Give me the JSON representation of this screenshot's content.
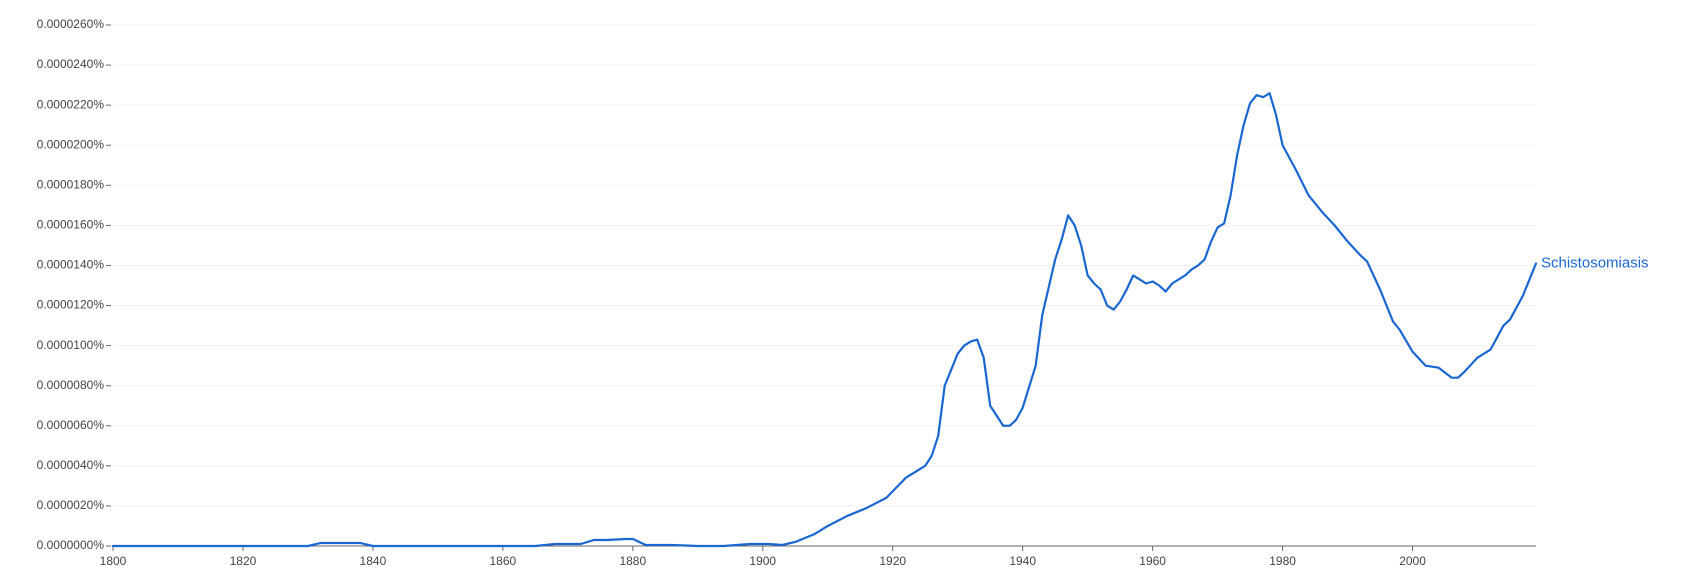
{
  "chart_data": {
    "type": "line",
    "xlim": [
      1800,
      2019
    ],
    "xticks": [
      1800,
      1820,
      1840,
      1860,
      1880,
      1900,
      1920,
      1940,
      1960,
      1980,
      2000
    ],
    "ylim": [
      0,
      2.6e-05
    ],
    "yticks": [
      {
        "value": 0,
        "label": "0.0000000%"
      },
      {
        "value": 2e-06,
        "label": "0.0000020%"
      },
      {
        "value": 4e-06,
        "label": "0.0000040%"
      },
      {
        "value": 6e-06,
        "label": "0.0000060%"
      },
      {
        "value": 8e-06,
        "label": "0.0000080%"
      },
      {
        "value": 1e-05,
        "label": "0.0000100%"
      },
      {
        "value": 1.2e-05,
        "label": "0.0000120%"
      },
      {
        "value": 1.4e-05,
        "label": "0.0000140%"
      },
      {
        "value": 1.6e-05,
        "label": "0.0000160%"
      },
      {
        "value": 1.8e-05,
        "label": "0.0000180%"
      },
      {
        "value": 2e-05,
        "label": "0.0000200%"
      },
      {
        "value": 2.2e-05,
        "label": "0.0000220%"
      },
      {
        "value": 2.4e-05,
        "label": "0.0000240%"
      },
      {
        "value": 2.6e-05,
        "label": "0.0000260%"
      }
    ],
    "grid": true,
    "x": [
      1800,
      1830,
      1832,
      1834,
      1838,
      1840,
      1865,
      1868,
      1872,
      1874,
      1876,
      1879,
      1880,
      1882,
      1886,
      1890,
      1894,
      1898,
      1901,
      1903,
      1905,
      1908,
      1910,
      1913,
      1916,
      1919,
      1922,
      1925,
      1926,
      1927,
      1928,
      1929,
      1930,
      1931,
      1932,
      1933,
      1934,
      1935,
      1936,
      1937,
      1938,
      1939,
      1940,
      1942,
      1943,
      1945,
      1946,
      1947,
      1948,
      1949,
      1950,
      1951,
      1952,
      1953,
      1954,
      1955,
      1956,
      1957,
      1958,
      1959,
      1960,
      1961,
      1962,
      1963,
      1964,
      1965,
      1966,
      1967,
      1968,
      1969,
      1970,
      1971,
      1972,
      1973,
      1974,
      1975,
      1976,
      1977,
      1978,
      1979,
      1980,
      1982,
      1984,
      1986,
      1988,
      1990,
      1992,
      1993,
      1995,
      1997,
      1998,
      2000,
      2002,
      2004,
      2006,
      2007,
      2008,
      2010,
      2012,
      2014,
      2015,
      2017,
      2019
    ],
    "series": [
      {
        "name": "Schistosomiasis",
        "color": "#1a67d2",
        "values": [
          0,
          0,
          1.5e-07,
          1.5e-07,
          1.5e-07,
          0,
          0,
          1e-07,
          1e-07,
          3e-07,
          3e-07,
          3.5e-07,
          3.5e-07,
          5e-08,
          5e-08,
          0,
          0,
          1e-07,
          1e-07,
          5e-08,
          2e-07,
          6e-07,
          1e-06,
          1.5e-06,
          1.9e-06,
          2.4e-06,
          3.4e-06,
          4e-06,
          4.5e-06,
          5.5e-06,
          8e-06,
          8.8e-06,
          9.6e-06,
          1e-05,
          1.02e-05,
          1.03e-05,
          9.4e-06,
          7e-06,
          6.5e-06,
          6e-06,
          6e-06,
          6.3e-06,
          6.9e-06,
          9e-06,
          1.15e-05,
          1.43e-05,
          1.53e-05,
          1.65e-05,
          1.6e-05,
          1.5e-05,
          1.35e-05,
          1.31e-05,
          1.28e-05,
          1.2e-05,
          1.18e-05,
          1.22e-05,
          1.28e-05,
          1.35e-05,
          1.33e-05,
          1.31e-05,
          1.32e-05,
          1.3e-05,
          1.27e-05,
          1.31e-05,
          1.33e-05,
          1.35e-05,
          1.38e-05,
          1.4e-05,
          1.43e-05,
          1.52e-05,
          1.59e-05,
          1.61e-05,
          1.75e-05,
          1.95e-05,
          2.1e-05,
          2.21e-05,
          2.25e-05,
          2.24e-05,
          2.26e-05,
          2.15e-05,
          2e-05,
          1.88e-05,
          1.75e-05,
          1.67e-05,
          1.6e-05,
          1.52e-05,
          1.45e-05,
          1.42e-05,
          1.28e-05,
          1.12e-05,
          1.08e-05,
          9.7e-06,
          9e-06,
          8.9e-06,
          8.4e-06,
          8.4e-06,
          8.7e-06,
          9.4e-06,
          9.8e-06,
          1.1e-05,
          1.13e-05,
          1.25e-05,
          1.41e-05
        ]
      }
    ]
  }
}
